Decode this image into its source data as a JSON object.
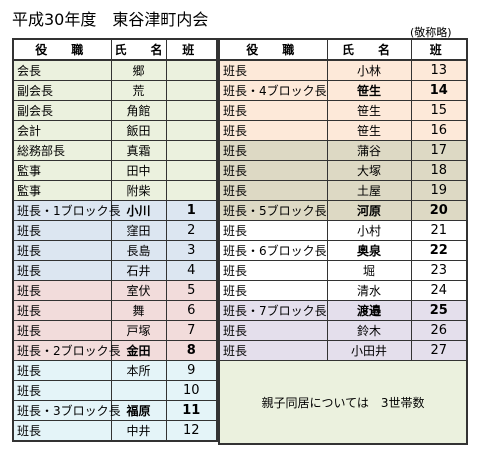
{
  "header": {
    "title": "平成30年度　東谷津町内会",
    "note": "(敬称略)"
  },
  "column_headers": [
    "役　職",
    "氏　名",
    "班"
  ],
  "left_table": {
    "rows": [
      [
        "会長",
        "郷",
        null
      ],
      [
        "副会長",
        "荒",
        null
      ],
      [
        "副会長",
        "角館",
        null
      ],
      [
        "会計",
        "飯田",
        null
      ],
      [
        "総務部長",
        "真霜",
        null
      ],
      [
        "監事",
        "田中",
        null
      ],
      [
        "監事",
        "附柴",
        null
      ],
      [
        "班長・1ブロック長",
        "小川",
        1
      ],
      [
        "班長",
        "窪田",
        2
      ],
      [
        "班長",
        "長島",
        3
      ],
      [
        "班長",
        "石井",
        4
      ],
      [
        "班長",
        "室伏",
        5
      ],
      [
        "班長",
        "舞",
        6
      ],
      [
        "班長",
        "戸塚",
        7
      ],
      [
        "班長・2ブロック長",
        "金田",
        8
      ],
      [
        "班長",
        "本所",
        9
      ],
      [
        "班長",
        null,
        10
      ],
      [
        "班長・3ブロック長",
        "福原",
        11
      ],
      [
        "班長",
        "中井",
        12
      ]
    ]
  },
  "right_table": {
    "rows": [
      [
        "班長",
        "小林",
        13
      ],
      [
        "班長・4ブロック長",
        "笹生",
        14
      ],
      [
        "班長",
        "笹生",
        15
      ],
      [
        "班長",
        "笹生",
        16
      ],
      [
        "班長",
        "蒲谷",
        17
      ],
      [
        "班長",
        "大塚",
        18
      ],
      [
        "班長",
        "土屋",
        19
      ],
      [
        "班長・5ブロック長",
        "河原",
        20
      ],
      [
        "班長",
        "小村",
        21
      ],
      [
        "班長・6ブロック長",
        "奥泉",
        22
      ],
      [
        "班長",
        "堀",
        23
      ],
      [
        "班長",
        "清水",
        24
      ],
      [
        "班長・7ブロック長",
        "渡邉",
        25
      ],
      [
        "班長",
        "鈴木",
        26
      ],
      [
        "班長",
        "小田井",
        27
      ]
    ],
    "footnote": "親子同居については　3世帯数"
  }
}
